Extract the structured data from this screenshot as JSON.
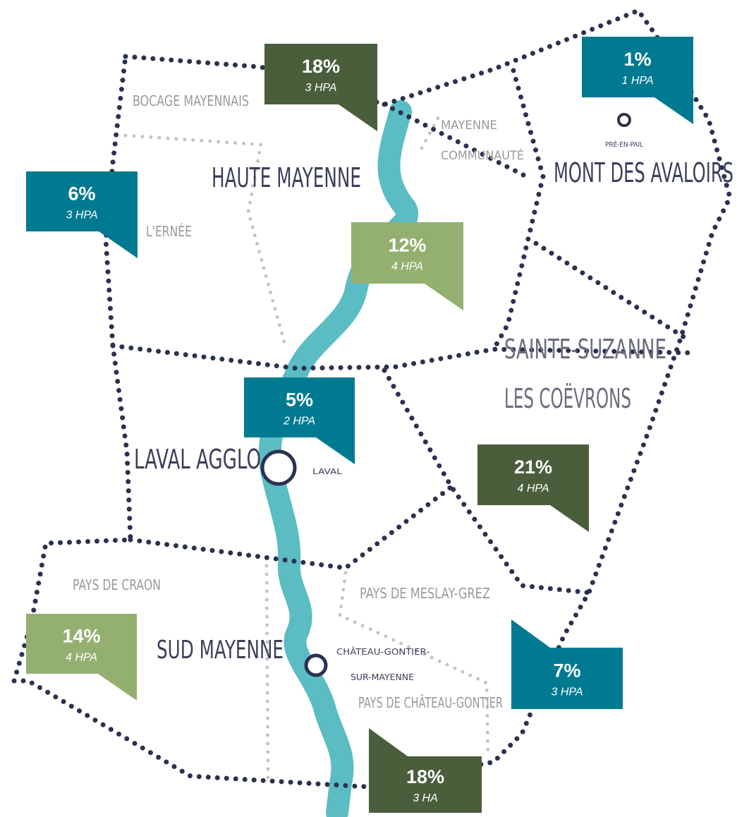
{
  "regions": [
    {
      "label": "BOCAGE MAYENNAIS"
    },
    {
      "label": "MAYENNE"
    },
    {
      "label": "COMMUNAUTÉ"
    },
    {
      "label": "HAUTE MAYENNE"
    },
    {
      "label": "PRÉ-EN-PAIL"
    },
    {
      "label": "MONT DES AVALOIRS"
    },
    {
      "label": "L'ERNÉE"
    },
    {
      "label": "SAINTE-SUZANNE"
    },
    {
      "label": "LES COËVRONS"
    },
    {
      "label": "LAVAL AGGLO"
    },
    {
      "label": "LAVAL"
    },
    {
      "label": "PAYS DE CRAON"
    },
    {
      "label": "PAYS DE MESLAY-GREZ"
    },
    {
      "label": "SUD MAYENNE"
    },
    {
      "label": "CHÂTEAU-GONTIER-"
    },
    {
      "label": "SUR-MAYENNE"
    },
    {
      "label": "PAYS DE CHÂTEAU-GONTIER"
    }
  ],
  "callouts": [
    {
      "value": "18%",
      "note": "3 HPA",
      "color": "#4a5e3c"
    },
    {
      "value": "1%",
      "note": "1 HPA",
      "color": "#007a90"
    },
    {
      "value": "6%",
      "note": "3 HPA",
      "color": "#007a90"
    },
    {
      "value": "12%",
      "note": "4 HPA",
      "color": "#94b070"
    },
    {
      "value": "5%",
      "note": "2 HPA",
      "color": "#007a90"
    },
    {
      "value": "21%",
      "note": "4 HPA",
      "color": "#4a5e3c"
    },
    {
      "value": "14%",
      "note": "4 HPA",
      "color": "#94b070"
    },
    {
      "value": "7%",
      "note": "3 HPA",
      "color": "#007a90"
    },
    {
      "value": "18%",
      "note": "3 HA",
      "color": "#4a5e3c"
    }
  ]
}
